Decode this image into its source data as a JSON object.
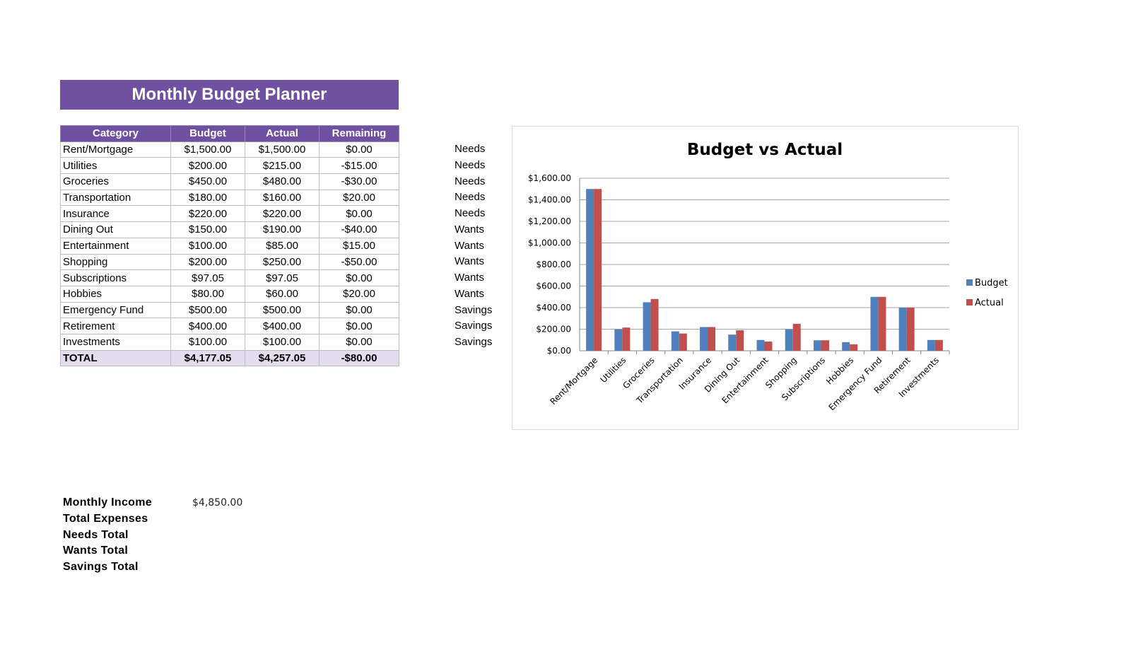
{
  "title": "Monthly Budget Planner",
  "table": {
    "headers": [
      "Category",
      "Budget",
      "Actual",
      "Remaining"
    ],
    "rows": [
      {
        "category": "Rent/Mortgage",
        "budget": "$1,500.00",
        "actual": "$1,500.00",
        "remaining": "$0.00",
        "group": "Needs"
      },
      {
        "category": "Utilities",
        "budget": "$200.00",
        "actual": "$215.00",
        "remaining": "-$15.00",
        "group": "Needs"
      },
      {
        "category": "Groceries",
        "budget": "$450.00",
        "actual": "$480.00",
        "remaining": "-$30.00",
        "group": "Needs"
      },
      {
        "category": "Transportation",
        "budget": "$180.00",
        "actual": "$160.00",
        "remaining": "$20.00",
        "group": "Needs"
      },
      {
        "category": "Insurance",
        "budget": "$220.00",
        "actual": "$220.00",
        "remaining": "$0.00",
        "group": "Needs"
      },
      {
        "category": "Dining Out",
        "budget": "$150.00",
        "actual": "$190.00",
        "remaining": "-$40.00",
        "group": "Wants"
      },
      {
        "category": "Entertainment",
        "budget": "$100.00",
        "actual": "$85.00",
        "remaining": "$15.00",
        "group": "Wants"
      },
      {
        "category": "Shopping",
        "budget": "$200.00",
        "actual": "$250.00",
        "remaining": "-$50.00",
        "group": "Wants"
      },
      {
        "category": "Subscriptions",
        "budget": "$97.05",
        "actual": "$97.05",
        "remaining": "$0.00",
        "group": "Wants"
      },
      {
        "category": "Hobbies",
        "budget": "$80.00",
        "actual": "$60.00",
        "remaining": "$20.00",
        "group": "Wants"
      },
      {
        "category": "Emergency Fund",
        "budget": "$500.00",
        "actual": "$500.00",
        "remaining": "$0.00",
        "group": "Savings"
      },
      {
        "category": "Retirement",
        "budget": "$400.00",
        "actual": "$400.00",
        "remaining": "$0.00",
        "group": "Savings"
      },
      {
        "category": "Investments",
        "budget": "$100.00",
        "actual": "$100.00",
        "remaining": "$0.00",
        "group": "Savings"
      }
    ],
    "total": {
      "label": "TOTAL",
      "budget": "$4,177.05",
      "actual": "$4,257.05",
      "remaining": "-$80.00"
    }
  },
  "summary": [
    {
      "label": "Monthly Income",
      "value": "$4,850.00"
    },
    {
      "label": "Total Expenses",
      "value": ""
    },
    {
      "label": "Needs Total",
      "value": ""
    },
    {
      "label": "Wants Total",
      "value": ""
    },
    {
      "label": "Savings Total",
      "value": ""
    }
  ],
  "colors": {
    "header_purple": "#7050a0",
    "total_row": "#e4ddf0",
    "budget_series": "#4f81bd",
    "actual_series": "#c0504d",
    "gridline": "#a6a6a6"
  },
  "chart_data": {
    "type": "bar",
    "title": "Budget vs Actual",
    "categories": [
      "Rent/Mortgage",
      "Utilities",
      "Groceries",
      "Transportation",
      "Insurance",
      "Dining Out",
      "Entertainment",
      "Shopping",
      "Subscriptions",
      "Hobbies",
      "Emergency Fund",
      "Retirement",
      "Investments"
    ],
    "series": [
      {
        "name": "Budget",
        "values": [
          1500,
          200,
          450,
          180,
          220,
          150,
          100,
          200,
          97.05,
          80,
          500,
          400,
          100
        ]
      },
      {
        "name": "Actual",
        "values": [
          1500,
          215,
          480,
          160,
          220,
          190,
          85,
          250,
          97.05,
          60,
          500,
          400,
          100
        ]
      }
    ],
    "ylim": [
      0,
      1600
    ],
    "yticks": [
      0,
      200,
      400,
      600,
      800,
      1000,
      1200,
      1400,
      1600
    ],
    "ytick_labels": [
      "$0.00",
      "$200.00",
      "$400.00",
      "$600.00",
      "$800.00",
      "$1,000.00",
      "$1,200.00",
      "$1,400.00",
      "$1,600.00"
    ],
    "xlabel": "",
    "ylabel": "",
    "grid": true,
    "legend": "right"
  }
}
